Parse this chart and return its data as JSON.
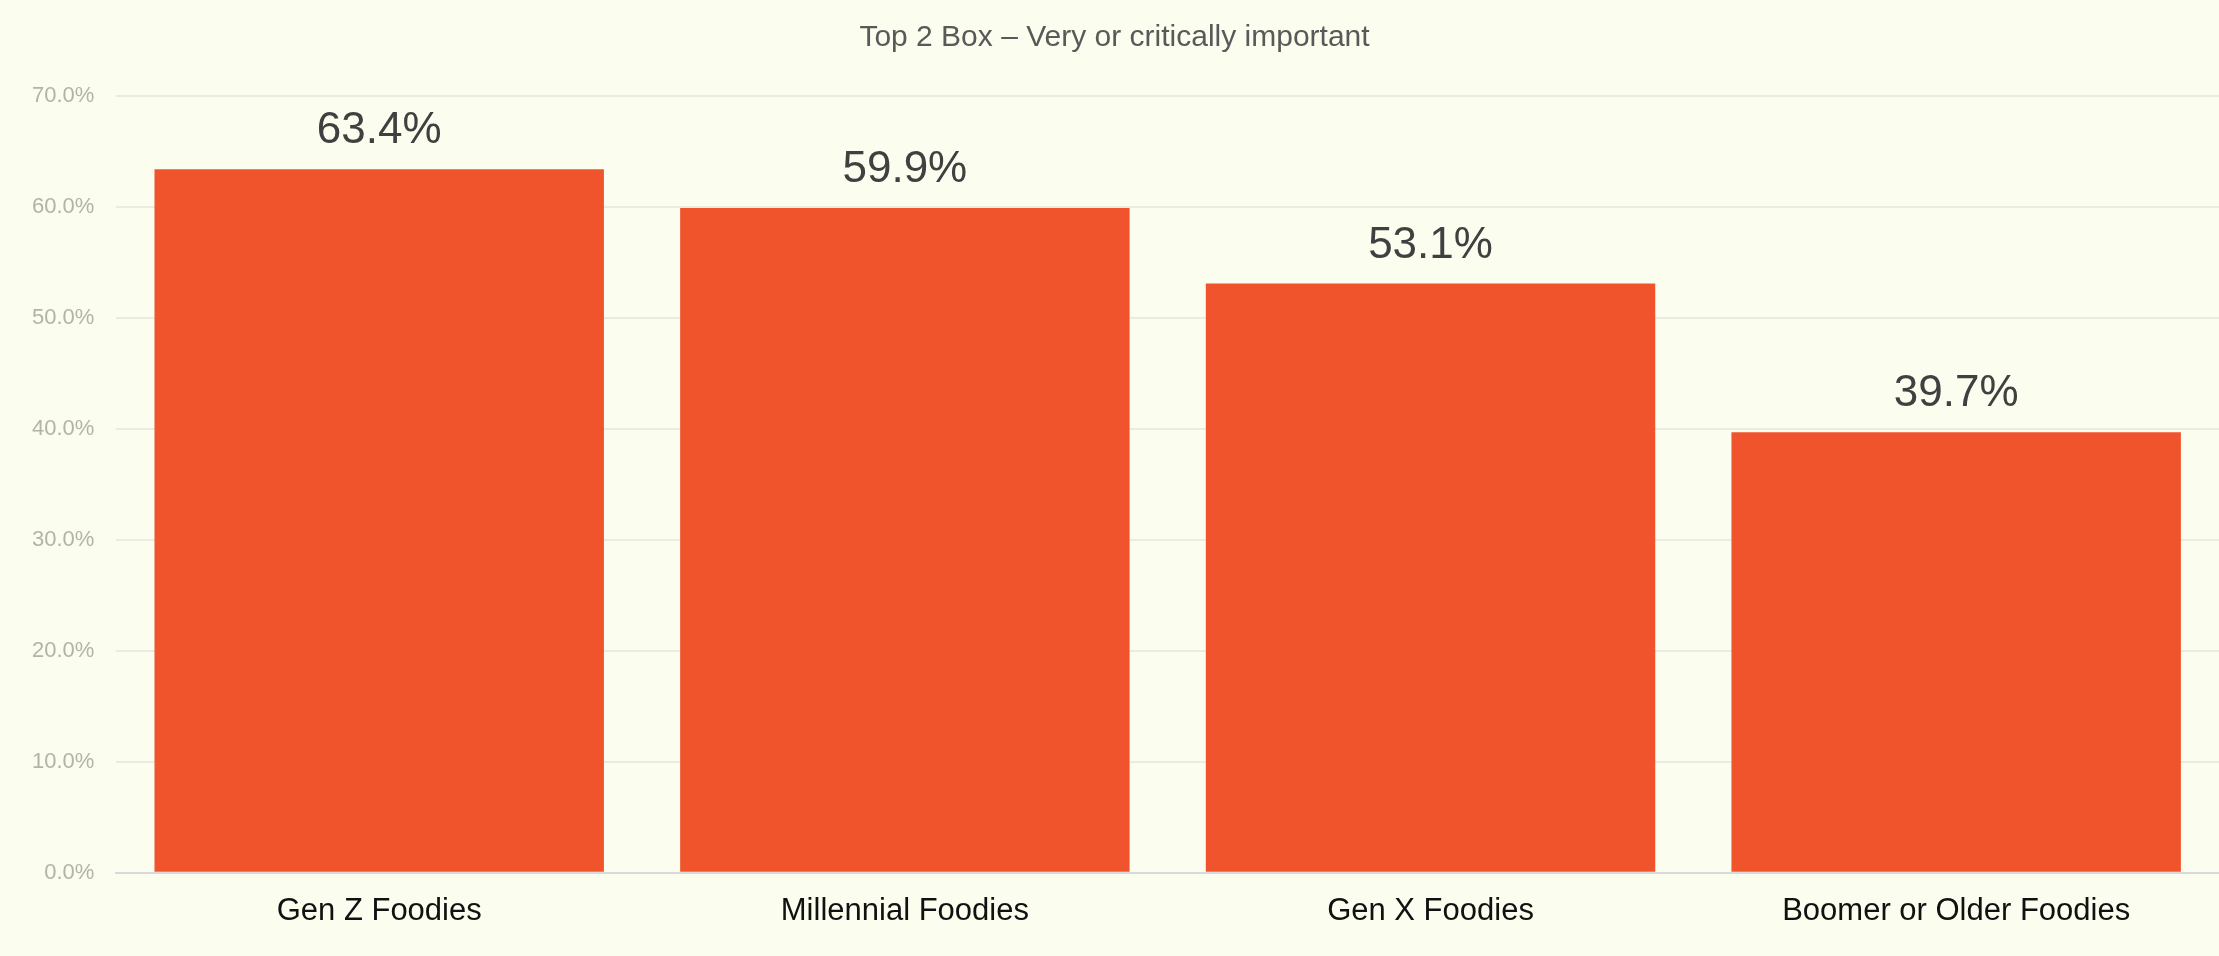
{
  "chart_data": {
    "type": "bar",
    "title": "Top 2 Box – Very or critically important",
    "categories": [
      "Gen Z Foodies",
      "Millennial Foodies",
      "Gen X Foodies",
      "Boomer or Older Foodies"
    ],
    "values": [
      63.4,
      59.9,
      53.1,
      39.7
    ],
    "color": "#f0542c",
    "ylim": [
      0,
      70
    ],
    "yticks": [
      {
        "value": 0,
        "label": "0.0%"
      },
      {
        "value": 10,
        "label": "10.0%"
      },
      {
        "value": 20,
        "label": "20.0%"
      },
      {
        "value": 30,
        "label": "30.0%"
      },
      {
        "value": 40,
        "label": "40.0%"
      },
      {
        "value": 50,
        "label": "50.0%"
      },
      {
        "value": 60,
        "label": "60.0%"
      },
      {
        "value": 70,
        "label": "70.0%"
      }
    ],
    "value_labels": [
      "63.4%",
      "59.9%",
      "53.1%",
      "39.7%"
    ],
    "grid": "y",
    "legend": false
  }
}
